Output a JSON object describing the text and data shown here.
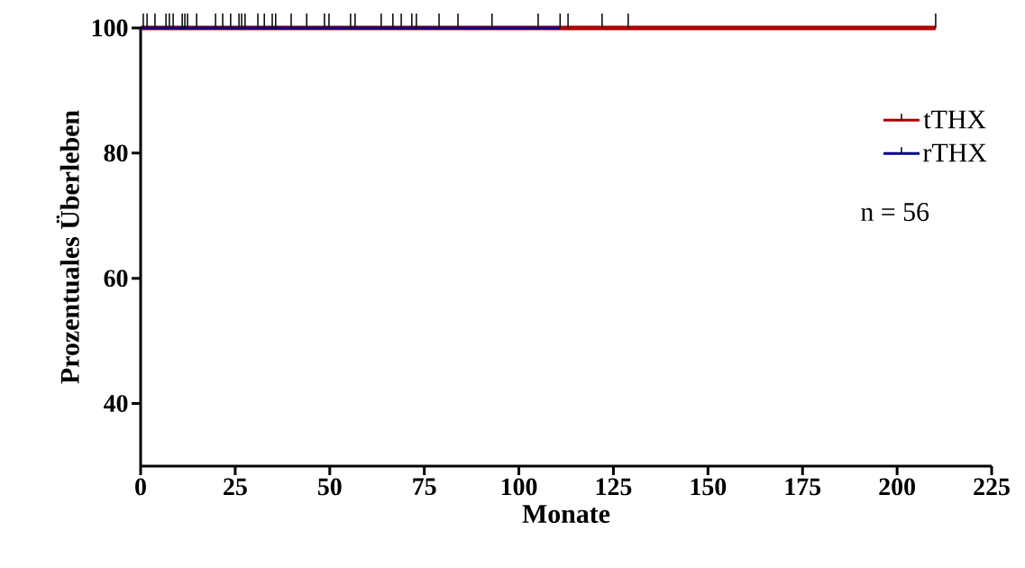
{
  "chart_data": {
    "type": "step",
    "xlabel": "Monate",
    "ylabel": "Prozentuales Überleben",
    "xlim": [
      0,
      225
    ],
    "xticks": [
      0,
      25,
      50,
      75,
      100,
      125,
      150,
      175,
      200,
      225
    ],
    "ylim": [
      30,
      100
    ],
    "yticks": [
      40,
      60,
      80,
      100
    ],
    "legend": "right",
    "series": [
      {
        "name": "tTHX",
        "color": "#b00000",
        "x": [
          0,
          113.0,
          122.0,
          128.9,
          210.2
        ],
        "values": [
          100,
          100,
          100,
          100,
          100
        ]
      },
      {
        "name": "rTHX",
        "color": "#000090",
        "x": [
          0,
          0.7,
          1.7,
          3.8,
          6.7,
          7.6,
          8.6,
          11.0,
          11.7,
          12.4,
          14.8,
          19.8,
          21.7,
          23.8,
          26.0,
          26.7,
          27.6,
          31.0,
          32.7,
          34.8,
          35.7,
          39.8,
          43.9,
          48.6,
          49.8,
          55.5,
          56.7,
          63.6,
          66.7,
          68.9,
          71.7,
          72.9,
          78.9,
          83.9,
          92.9,
          105.1,
          110.9
        ],
        "values": [
          100,
          100,
          100,
          100,
          100,
          100,
          100,
          100,
          100,
          100,
          100,
          100,
          100,
          100,
          100,
          100,
          100,
          100,
          100,
          100,
          100,
          100,
          100,
          100,
          100,
          100,
          100,
          100,
          100,
          100,
          100,
          100,
          100,
          100,
          100,
          100,
          100
        ]
      }
    ],
    "annotations": [
      "n = 56"
    ]
  }
}
